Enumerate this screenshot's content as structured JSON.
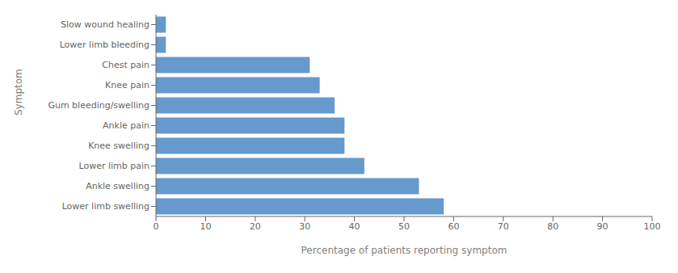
{
  "chart_data": {
    "type": "bar",
    "orientation": "horizontal",
    "categories": [
      "Lower limb swelling",
      "Ankle swelling",
      "Lower limb pain",
      "Knee swelling",
      "Ankle pain",
      "Gum bleeding/swelling",
      "Knee pain",
      "Chest pain",
      "Lower limb bleeding",
      "Slow wound healing"
    ],
    "values": [
      58,
      53,
      42,
      38,
      38,
      36,
      33,
      31,
      2,
      2
    ],
    "color": "#6699cc",
    "xlabel": "Percentage of patients reporting symptom",
    "ylabel": "Symptom",
    "xlim": [
      0,
      100
    ],
    "xticks": [
      0,
      10,
      20,
      30,
      40,
      50,
      60,
      70,
      80,
      90,
      100
    ],
    "grid": false
  }
}
